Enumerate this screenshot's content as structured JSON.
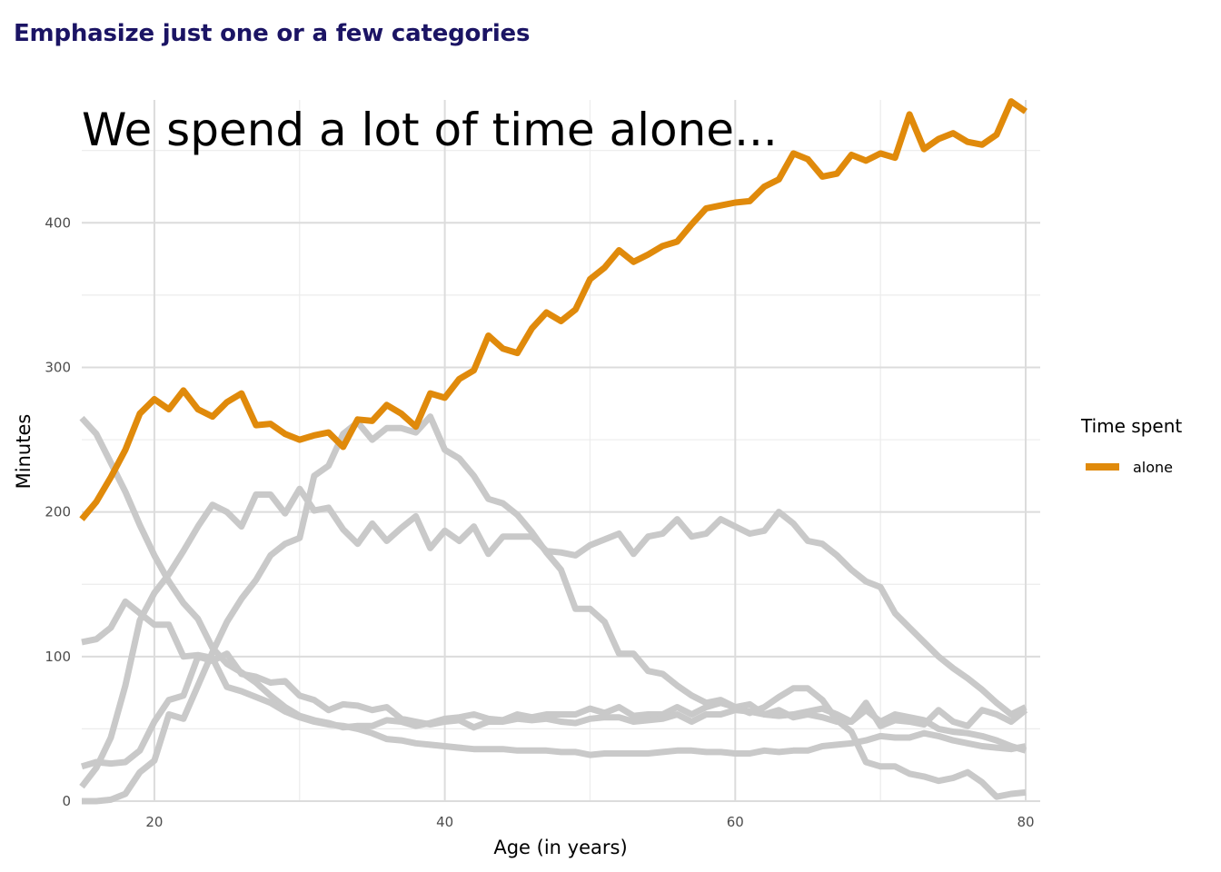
{
  "page": {
    "header": "Emphasize just one or a few categories"
  },
  "chart_data": {
    "type": "line",
    "annotation": "We spend a lot of time alone...",
    "xlabel": "Age (in years)",
    "ylabel": "Minutes",
    "xlim": [
      15,
      81
    ],
    "ylim": [
      0,
      485
    ],
    "xticks": [
      20,
      40,
      60,
      80
    ],
    "yticks": [
      0,
      100,
      200,
      300,
      400
    ],
    "grid": true,
    "legend": {
      "title": "Time spent",
      "position": "right"
    },
    "highlight_color": "#e08a0b",
    "background_color": "#c9c9c9",
    "x": [
      15,
      16,
      17,
      18,
      19,
      20,
      21,
      22,
      23,
      24,
      25,
      26,
      27,
      28,
      29,
      30,
      31,
      32,
      33,
      34,
      35,
      36,
      37,
      38,
      39,
      40,
      41,
      42,
      43,
      44,
      45,
      46,
      47,
      48,
      49,
      50,
      51,
      52,
      53,
      54,
      55,
      56,
      57,
      58,
      59,
      60,
      61,
      62,
      63,
      64,
      65,
      66,
      67,
      68,
      69,
      70,
      71,
      72,
      73,
      74,
      75,
      76,
      77,
      78,
      79,
      80
    ],
    "series": [
      {
        "name": "alone",
        "highlight": true,
        "values": [
          195,
          207,
          224,
          243,
          268,
          278,
          271,
          284,
          271,
          266,
          276,
          282,
          260,
          261,
          254,
          250,
          253,
          255,
          245,
          264,
          263,
          274,
          268,
          259,
          282,
          279,
          292,
          298,
          322,
          313,
          310,
          327,
          338,
          332,
          340,
          361,
          369,
          381,
          373,
          378,
          384,
          387,
          399,
          410,
          412,
          414,
          415,
          425,
          430,
          448,
          444,
          432,
          434,
          447,
          443,
          448,
          445,
          475,
          451,
          458,
          462,
          456,
          454,
          461,
          484,
          477
        ]
      },
      {
        "values": [
          265,
          254,
          234,
          214,
          191,
          170,
          152,
          137,
          126,
          106,
          95,
          89,
          82,
          73,
          65,
          59,
          56,
          54,
          51,
          52,
          52,
          56,
          55,
          52,
          54,
          57,
          58,
          60,
          57,
          56,
          60,
          58,
          60,
          60,
          60,
          64,
          61,
          65,
          59,
          60,
          60,
          65,
          60,
          65,
          68,
          65,
          67,
          60,
          63,
          58,
          60,
          58,
          55,
          55,
          63,
          55,
          60,
          58,
          56,
          50,
          48,
          47,
          45,
          42,
          38,
          35
        ]
      },
      {
        "values": [
          110,
          112,
          120,
          138,
          130,
          122,
          122,
          100,
          101,
          99,
          79,
          76,
          72,
          68,
          62,
          58,
          55,
          53,
          52,
          50,
          47,
          43,
          42,
          40,
          39,
          38,
          37,
          36,
          36,
          36,
          35,
          35,
          35,
          34,
          34,
          32,
          33,
          33,
          33,
          33,
          34,
          35,
          35,
          34,
          34,
          33,
          33,
          35,
          34,
          35,
          35,
          38,
          39,
          40,
          42,
          45,
          44,
          44,
          47,
          45,
          42,
          40,
          38,
          37,
          36,
          38
        ]
      },
      {
        "values": [
          10,
          23,
          44,
          80,
          125,
          144,
          157,
          173,
          190,
          205,
          200,
          190,
          212,
          212,
          199,
          216,
          201,
          203,
          188,
          178,
          192,
          180,
          189,
          197,
          175,
          187,
          180,
          190,
          171,
          183,
          183,
          183,
          173,
          172,
          170,
          177,
          181,
          185,
          171,
          183,
          185,
          195,
          183,
          185,
          195,
          190,
          185,
          187,
          200,
          192,
          180,
          178,
          170,
          160,
          152,
          148,
          130,
          120,
          110,
          100,
          92,
          85,
          77,
          68,
          60,
          65
        ]
      },
      {
        "values": [
          24,
          27,
          26,
          27,
          35,
          55,
          70,
          73,
          100,
          97,
          102,
          88,
          86,
          82,
          83,
          73,
          70,
          63,
          67,
          66,
          63,
          65,
          57,
          55,
          53,
          55,
          56,
          51,
          55,
          55,
          57,
          56,
          57,
          55,
          54,
          57,
          58,
          58,
          55,
          56,
          57,
          60,
          55,
          60,
          60,
          63,
          62,
          60,
          59,
          60,
          62,
          64,
          60,
          55,
          68,
          52,
          56,
          55,
          53,
          63,
          55,
          52,
          63,
          60,
          55,
          63
        ]
      },
      {
        "values": [
          0,
          0,
          1,
          5,
          20,
          28,
          60,
          57,
          80,
          103,
          124,
          140,
          153,
          170,
          178,
          182,
          225,
          232,
          254,
          262,
          250,
          258,
          258,
          255,
          266,
          243,
          237,
          225,
          209,
          206,
          198,
          186,
          172,
          160,
          133,
          133,
          124,
          102,
          102,
          90,
          88,
          80,
          73,
          68,
          70,
          65,
          61,
          65,
          72,
          78,
          78,
          70,
          56,
          48,
          27,
          24,
          24,
          19,
          17,
          14,
          16,
          20,
          13,
          3,
          5,
          6
        ]
      }
    ]
  }
}
